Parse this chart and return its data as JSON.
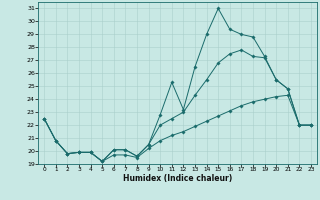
{
  "xlabel": "Humidex (Indice chaleur)",
  "xlim_min": -0.5,
  "xlim_max": 23.5,
  "ylim_min": 19,
  "ylim_max": 31.5,
  "yticks": [
    19,
    20,
    21,
    22,
    23,
    24,
    25,
    26,
    27,
    28,
    29,
    30,
    31
  ],
  "xticks": [
    0,
    1,
    2,
    3,
    4,
    5,
    6,
    7,
    8,
    9,
    10,
    11,
    12,
    13,
    14,
    15,
    16,
    17,
    18,
    19,
    20,
    21,
    22,
    23
  ],
  "bg_color": "#c8e8e4",
  "line_color": "#1a6b6b",
  "grid_color": "#aacfcb",
  "line1_x": [
    0,
    1,
    2,
    3,
    4,
    5,
    6,
    7,
    8,
    9,
    10,
    11,
    12,
    13,
    14,
    15,
    16,
    17,
    18,
    19,
    20,
    21,
    22,
    23
  ],
  "line1_y": [
    22.5,
    20.8,
    19.8,
    19.9,
    19.9,
    19.2,
    20.1,
    20.1,
    19.6,
    20.5,
    22.8,
    25.3,
    23.2,
    26.5,
    29.0,
    31.0,
    29.4,
    29.0,
    28.8,
    27.3,
    25.5,
    24.8,
    22.0,
    22.0
  ],
  "line2_x": [
    0,
    1,
    2,
    3,
    4,
    5,
    6,
    7,
    8,
    9,
    10,
    11,
    12,
    13,
    14,
    15,
    16,
    17,
    18,
    19,
    20,
    21,
    22,
    23
  ],
  "line2_y": [
    22.5,
    20.8,
    19.8,
    19.9,
    19.9,
    19.2,
    20.1,
    20.1,
    19.6,
    20.5,
    22.0,
    22.5,
    23.0,
    24.3,
    25.5,
    26.8,
    27.5,
    27.8,
    27.3,
    27.2,
    25.5,
    24.8,
    22.0,
    22.0
  ],
  "line3_x": [
    0,
    1,
    2,
    3,
    4,
    5,
    6,
    7,
    8,
    9,
    10,
    11,
    12,
    13,
    14,
    15,
    16,
    17,
    18,
    19,
    20,
    21,
    22,
    23
  ],
  "line3_y": [
    22.5,
    20.8,
    19.8,
    19.9,
    19.9,
    19.2,
    19.7,
    19.7,
    19.5,
    20.2,
    20.8,
    21.2,
    21.5,
    21.9,
    22.3,
    22.7,
    23.1,
    23.5,
    23.8,
    24.0,
    24.2,
    24.3,
    22.0,
    22.0
  ]
}
